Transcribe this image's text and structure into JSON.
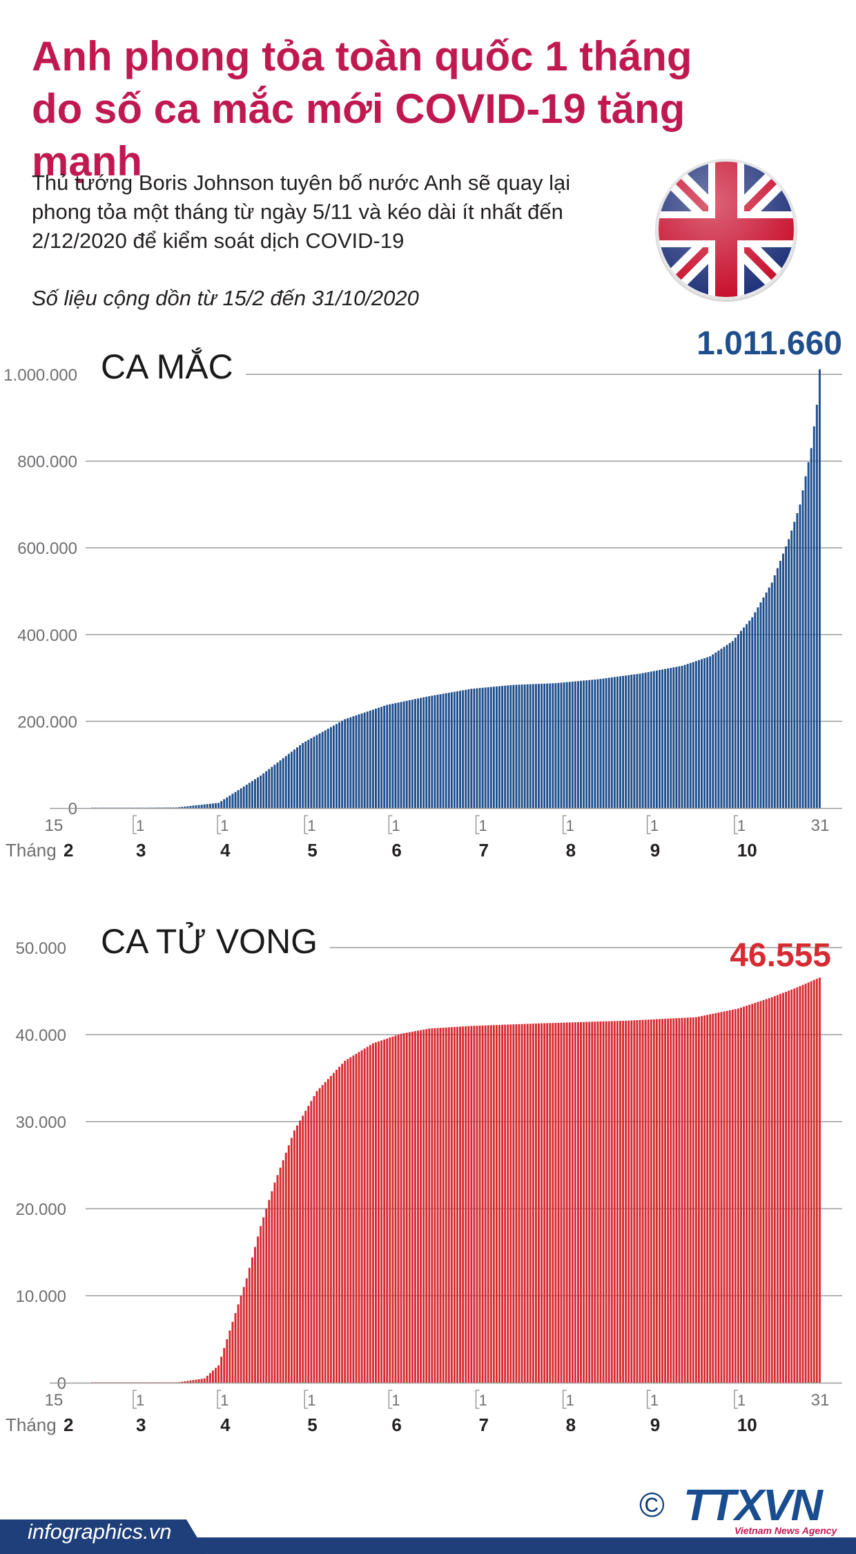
{
  "header": {
    "title_line1": "Anh phong tỏa toàn quốc 1 tháng",
    "title_line2": "do số ca mắc mới COVID-19 tăng mạnh",
    "description": "Thủ tướng Boris Johnson tuyên bố nước Anh sẽ quay lại phong tỏa một tháng từ ngày 5/11 và kéo dài ít nhất đến 2/12/2020 để kiểm soát dịch COVID-19",
    "note": "Số liệu cộng dồn từ 15/2 đến 31/10/2020"
  },
  "colors": {
    "title": "#c0194f",
    "cases": "#1f4e8c",
    "cases_total": "#1f4e8c",
    "deaths": "#d62b32",
    "deaths_total": "#d62b32",
    "grid": "#9a9a9a",
    "footer": "#1f3f7a"
  },
  "axis": {
    "start_day_label": "15",
    "end_day_label": "31",
    "month_start_label": "1",
    "month_prefix": "Tháng",
    "first_month": "2",
    "months": [
      "3",
      "4",
      "5",
      "6",
      "7",
      "8",
      "9",
      "10"
    ]
  },
  "chart_data": [
    {
      "type": "bar",
      "title": "CA MẮC",
      "total_label": "1.011.660",
      "ylim": [
        0,
        1000000
      ],
      "yticks": [
        0,
        200000,
        400000,
        600000,
        800000,
        1000000
      ],
      "ytick_labels": [
        "0",
        "200.000",
        "400.000",
        "600.000",
        "800.000",
        "1.000.000"
      ],
      "x_range": [
        "15/2",
        "31/10"
      ],
      "days": 260,
      "keypoints": [
        [
          0,
          0
        ],
        [
          30,
          1500
        ],
        [
          45,
          12000
        ],
        [
          60,
          75000
        ],
        [
          75,
          150000
        ],
        [
          90,
          205000
        ],
        [
          105,
          238000
        ],
        [
          120,
          258000
        ],
        [
          135,
          275000
        ],
        [
          150,
          284000
        ],
        [
          165,
          288000
        ],
        [
          180,
          297000
        ],
        [
          195,
          310000
        ],
        [
          210,
          328000
        ],
        [
          220,
          350000
        ],
        [
          228,
          385000
        ],
        [
          235,
          440000
        ],
        [
          242,
          520000
        ],
        [
          248,
          620000
        ],
        [
          252,
          700000
        ],
        [
          256,
          830000
        ],
        [
          258,
          930000
        ],
        [
          259,
          1011660
        ]
      ]
    },
    {
      "type": "bar",
      "title": "CA TỬ VONG",
      "total_label": "46.555",
      "ylim": [
        0,
        50000
      ],
      "yticks": [
        0,
        10000,
        20000,
        30000,
        40000,
        50000
      ],
      "ytick_labels": [
        "0",
        "10.000",
        "20.000",
        "30.000",
        "40.000",
        "50.000"
      ],
      "x_range": [
        "15/2",
        "31/10"
      ],
      "days": 260,
      "keypoints": [
        [
          0,
          0
        ],
        [
          30,
          20
        ],
        [
          40,
          500
        ],
        [
          45,
          2000
        ],
        [
          55,
          12000
        ],
        [
          60,
          18000
        ],
        [
          65,
          23000
        ],
        [
          72,
          29000
        ],
        [
          80,
          33500
        ],
        [
          90,
          37000
        ],
        [
          100,
          39000
        ],
        [
          110,
          40100
        ],
        [
          120,
          40700
        ],
        [
          135,
          41000
        ],
        [
          160,
          41300
        ],
        [
          190,
          41600
        ],
        [
          215,
          42000
        ],
        [
          230,
          43000
        ],
        [
          242,
          44300
        ],
        [
          250,
          45300
        ],
        [
          259,
          46555
        ]
      ]
    }
  ],
  "footer": {
    "website": "infographics.vn",
    "copyright": "©",
    "logo": "TTXVN",
    "agency": "Vietnam News Agency"
  }
}
